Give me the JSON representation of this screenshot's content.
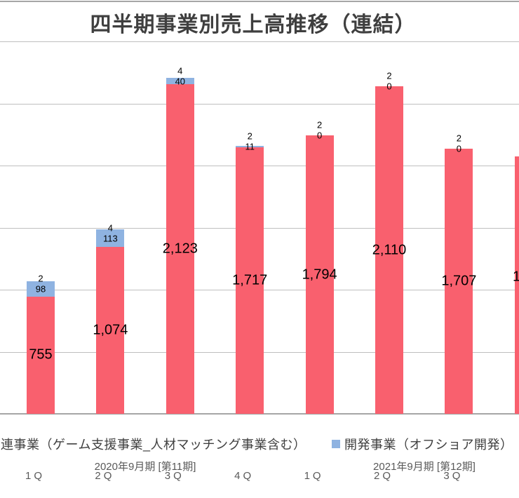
{
  "chart_data": {
    "type": "bar",
    "stacked": true,
    "title": "四半期事業別売上高推移（連結）",
    "grid": true,
    "y_axis": {
      "min": 0,
      "max": 2400,
      "grid_step": 400,
      "tick_labels_visible": false
    },
    "categories": [
      "1Q",
      "2Q",
      "3Q",
      "4Q",
      "1Q",
      "2Q",
      "3Q",
      null
    ],
    "fiscal_periods": [
      {
        "label": "2020年9月期 [第11期]",
        "covers_bars": [
          0,
          3
        ]
      },
      {
        "label": "2021年9月期 [第12期]",
        "covers_bars": [
          4,
          7
        ]
      }
    ],
    "series": [
      {
        "name": "連事業（ゲーム支援事業_人材マッチング事業含む）",
        "color": "#f9606e",
        "values": [
          755,
          1074,
          2123,
          1717,
          1794,
          2110,
          1707,
          1660
        ],
        "labels": [
          "755",
          "1,074",
          "2,123",
          "1,717",
          "1,794",
          "2,110",
          "1,707",
          "1,"
        ],
        "label_truncated": [
          false,
          false,
          false,
          false,
          false,
          false,
          false,
          true
        ]
      },
      {
        "name": "開発事業（オフショア開発）",
        "color": "#8fb3e1",
        "values": [
          98,
          113,
          40,
          11,
          0,
          0,
          0,
          null
        ],
        "labels": [
          "98",
          "113",
          "40",
          "11",
          "0",
          "0",
          "0",
          null
        ]
      },
      {
        "name": "unlabeled-top-segment",
        "color": null,
        "values": [
          2,
          4,
          4,
          2,
          2,
          2,
          2,
          null
        ],
        "labels": [
          "2",
          "4",
          "4",
          "2",
          "2",
          "2",
          "2",
          null
        ]
      }
    ],
    "legend": {
      "position": "bottom",
      "items": [
        {
          "label": "連事業（ゲーム支援事業_人材マッチング事業含む）",
          "swatch_visible": false,
          "swatch_color": "#f9606e"
        },
        {
          "label": "開発事業（オフショア開発）",
          "swatch_visible": true,
          "swatch_color": "#8fb3e1"
        }
      ]
    },
    "colors": {
      "main_series": "#f9606e",
      "dev_series": "#8fb3e1",
      "gridline": "#bfbfbf",
      "baseline": "#a6a6a6",
      "title_text": "#3f3f3f",
      "axis_text": "#595959",
      "value_text": "#000000"
    }
  }
}
